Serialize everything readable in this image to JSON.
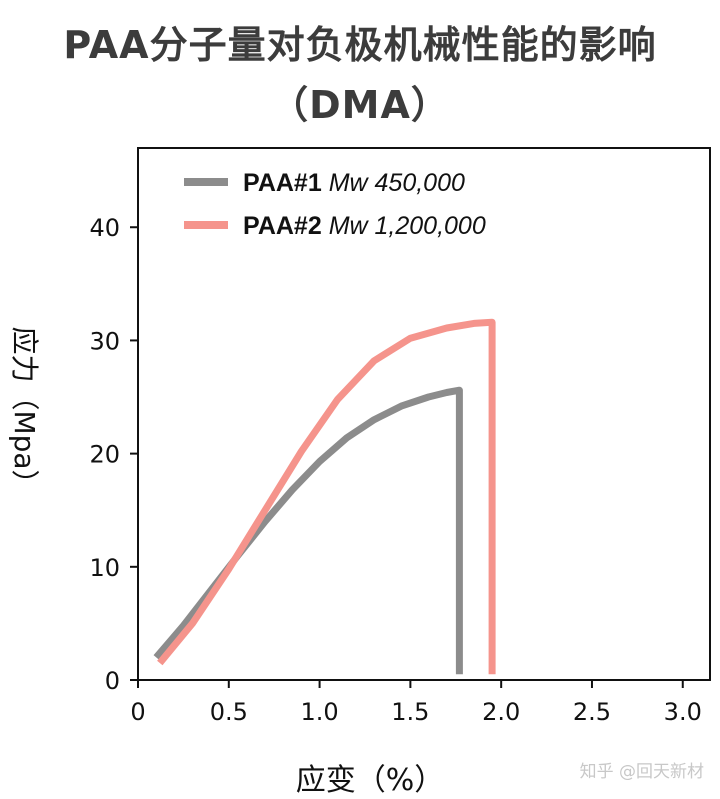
{
  "chart_data": {
    "type": "line",
    "title_line1": "PAA分子量对负极机械性能的影响",
    "title_line2": "（DMA）",
    "xlabel": "应变（%）",
    "ylabel": "应力（Mpa）",
    "xlim": [
      0,
      3.15
    ],
    "ylim": [
      0,
      47
    ],
    "xticks": [
      0,
      0.5,
      1.0,
      1.5,
      2.0,
      2.5,
      3.0
    ],
    "xtick_labels": [
      "0",
      "0.5",
      "1.0",
      "1.5",
      "2.0",
      "2.5",
      "3.0"
    ],
    "yticks": [
      0,
      10,
      20,
      30,
      40
    ],
    "ytick_labels": [
      "0",
      "10",
      "20",
      "30",
      "40"
    ],
    "grid": false,
    "legend_position": "top-left",
    "series": [
      {
        "name": "PAA#1",
        "name_suffix": "Mw 450,000",
        "color": "#8c8c8c",
        "x": [
          0.1,
          0.25,
          0.4,
          0.55,
          0.7,
          0.85,
          1.0,
          1.15,
          1.3,
          1.45,
          1.6,
          1.7,
          1.77,
          1.77
        ],
        "y": [
          2.0,
          4.8,
          7.9,
          11.0,
          14.0,
          16.8,
          19.3,
          21.4,
          23.0,
          24.2,
          25.0,
          25.4,
          25.6,
          0.5
        ]
      },
      {
        "name": "PAA#2",
        "name_suffix": "Mw 1,200,000",
        "color": "#f5948c",
        "x": [
          0.12,
          0.3,
          0.5,
          0.7,
          0.9,
          1.1,
          1.3,
          1.5,
          1.7,
          1.85,
          1.95,
          1.95
        ],
        "y": [
          1.5,
          5.0,
          9.8,
          15.0,
          20.2,
          24.8,
          28.2,
          30.2,
          31.1,
          31.5,
          31.6,
          0.5
        ]
      }
    ]
  },
  "watermark": "知乎 @回天新材"
}
